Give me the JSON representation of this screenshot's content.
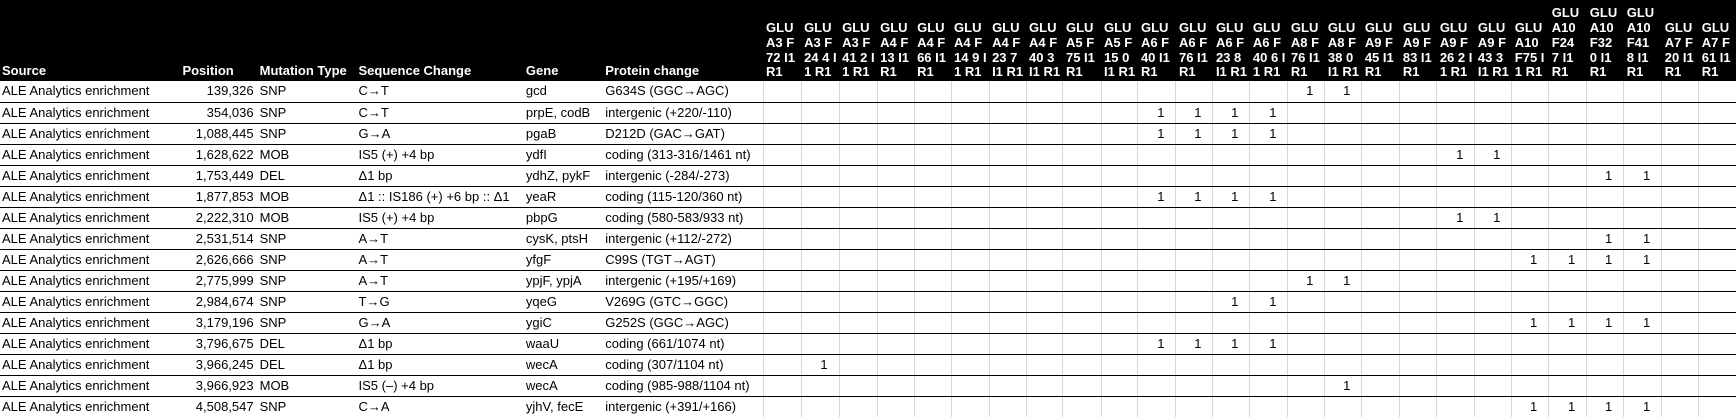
{
  "columns": [
    "Source",
    "Position",
    "Mutation Type",
    "Sequence Change",
    "Gene",
    "Protein change"
  ],
  "sample_columns": [
    "GLU A3 F72 I1 R1",
    "GLU A3 F24 4 I1 R1",
    "GLU A3 F41 2 I1 R1",
    "GLU A4 F13 I1 R1",
    "GLU A4 F66 I1 R1",
    "GLU A4 F14 9 I1 R1",
    "GLU A4 F23 7 I1 R1",
    "GLU A4 F40 3 I1 R1",
    "GLU A5 F75 I1 R1",
    "GLU A5 F15 0 I1 R1",
    "GLU A6 F40 I1 R1",
    "GLU A6 F76 I1 R1",
    "GLU A6 F23 8 I1 R1",
    "GLU A6 F40 6 I1 R1",
    "GLU A8 F76 I1 R1",
    "GLU A8 F38 0 I1 R1",
    "GLU A9 F45 I1 R1",
    "GLU A9 F83 I1 R1",
    "GLU A9 F26 2 I1 R1",
    "GLU A9 F43 3 I1 R1",
    "GLU A10 F75 I1 R1",
    "GLU A10 F24 7 I1 R1",
    "GLU A10 F32 0 I1 R1",
    "GLU A10 F41 8 I1 R1",
    "GLU A7 F20 I1 R1",
    "GLU A7 F61 I1 R1"
  ],
  "rows": [
    {
      "source": "ALE Analytics enrichment",
      "position": "139,326",
      "type": "SNP",
      "seq": "C→T",
      "gene": "gcd",
      "protein": "G634S (GGC→AGC)",
      "cells": [
        "",
        "",
        "",
        "",
        "",
        "",
        "",
        "",
        "",
        "",
        "",
        "",
        "",
        "",
        "1",
        "1",
        "",
        "",
        "",
        "",
        "",
        "",
        "",
        "",
        "",
        ""
      ]
    },
    {
      "source": "ALE Analytics enrichment",
      "position": "354,036",
      "type": "SNP",
      "seq": "C→T",
      "gene": "prpE,  codB",
      "protein": "intergenic (+220/-110)",
      "cells": [
        "",
        "",
        "",
        "",
        "",
        "",
        "",
        "",
        "",
        "",
        "1",
        "1",
        "1",
        "1",
        "",
        "",
        "",
        "",
        "",
        "",
        "",
        "",
        "",
        "",
        "",
        ""
      ]
    },
    {
      "source": "ALE Analytics enrichment",
      "position": "1,088,445",
      "type": "SNP",
      "seq": "G→A",
      "gene": "pgaB",
      "protein": "D212D (GAC→GAT)",
      "cells": [
        "",
        "",
        "",
        "",
        "",
        "",
        "",
        "",
        "",
        "",
        "1",
        "1",
        "1",
        "1",
        "",
        "",
        "",
        "",
        "",
        "",
        "",
        "",
        "",
        "",
        "",
        ""
      ]
    },
    {
      "source": "ALE Analytics enrichment",
      "position": "1,628,622",
      "type": "MOB",
      "seq": "IS5 (+) +4 bp",
      "gene": "ydfI",
      "protein": "coding (313-316/1461 nt)",
      "cells": [
        "",
        "",
        "",
        "",
        "",
        "",
        "",
        "",
        "",
        "",
        "",
        "",
        "",
        "",
        "",
        "",
        "",
        "",
        "1",
        "1",
        "",
        "",
        "",
        "",
        "",
        ""
      ]
    },
    {
      "source": "ALE Analytics enrichment",
      "position": "1,753,449",
      "type": "DEL",
      "seq": "Δ1 bp",
      "gene": "ydhZ,  pykF",
      "protein": "intergenic (-284/-273)",
      "cells": [
        "",
        "",
        "",
        "",
        "",
        "",
        "",
        "",
        "",
        "",
        "",
        "",
        "",
        "",
        "",
        "",
        "",
        "",
        "",
        "",
        "",
        "",
        "1",
        "1",
        "",
        ""
      ]
    },
    {
      "source": "ALE Analytics enrichment",
      "position": "1,877,853",
      "type": "MOB",
      "seq": "Δ1 :: IS186 (+) +6 bp :: Δ1",
      "gene": "yeaR",
      "protein": "coding (115-120/360 nt)",
      "cells": [
        "",
        "",
        "",
        "",
        "",
        "",
        "",
        "",
        "",
        "",
        "1",
        "1",
        "1",
        "1",
        "",
        "",
        "",
        "",
        "",
        "",
        "",
        "",
        "",
        "",
        "",
        ""
      ]
    },
    {
      "source": "ALE Analytics enrichment",
      "position": "2,222,310",
      "type": "MOB",
      "seq": "IS5 (+) +4 bp",
      "gene": "pbpG",
      "protein": "coding (580-583/933 nt)",
      "cells": [
        "",
        "",
        "",
        "",
        "",
        "",
        "",
        "",
        "",
        "",
        "",
        "",
        "",
        "",
        "",
        "",
        "",
        "",
        "1",
        "1",
        "",
        "",
        "",
        "",
        "",
        ""
      ]
    },
    {
      "source": "ALE Analytics enrichment",
      "position": "2,531,514",
      "type": "SNP",
      "seq": "A→T",
      "gene": "cysK,  ptsH",
      "protein": "intergenic (+112/-272)",
      "cells": [
        "",
        "",
        "",
        "",
        "",
        "",
        "",
        "",
        "",
        "",
        "",
        "",
        "",
        "",
        "",
        "",
        "",
        "",
        "",
        "",
        "",
        "",
        "1",
        "1",
        "",
        ""
      ]
    },
    {
      "source": "ALE Analytics enrichment",
      "position": "2,626,666",
      "type": "SNP",
      "seq": "A→T",
      "gene": "yfgF",
      "protein": "C99S (TGT→AGT)",
      "cells": [
        "",
        "",
        "",
        "",
        "",
        "",
        "",
        "",
        "",
        "",
        "",
        "",
        "",
        "",
        "",
        "",
        "",
        "",
        "",
        "",
        "1",
        "1",
        "1",
        "1",
        "",
        ""
      ]
    },
    {
      "source": "ALE Analytics enrichment",
      "position": "2,775,999",
      "type": "SNP",
      "seq": "A→T",
      "gene": "ypjF,  ypjA",
      "protein": "intergenic (+195/+169)",
      "cells": [
        "",
        "",
        "",
        "",
        "",
        "",
        "",
        "",
        "",
        "",
        "",
        "",
        "",
        "",
        "1",
        "1",
        "",
        "",
        "",
        "",
        "",
        "",
        "",
        "",
        "",
        ""
      ]
    },
    {
      "source": "ALE Analytics enrichment",
      "position": "2,984,674",
      "type": "SNP",
      "seq": "T→G",
      "gene": "yqeG",
      "protein": "V269G (GTC→GGC)",
      "cells": [
        "",
        "",
        "",
        "",
        "",
        "",
        "",
        "",
        "",
        "",
        "",
        "",
        "1",
        "1",
        "",
        "",
        "",
        "",
        "",
        "",
        "",
        "",
        "",
        "",
        "",
        ""
      ]
    },
    {
      "source": "ALE Analytics enrichment",
      "position": "3,179,196",
      "type": "SNP",
      "seq": "G→A",
      "gene": "ygiC",
      "protein": "G252S (GGC→AGC)",
      "cells": [
        "",
        "",
        "",
        "",
        "",
        "",
        "",
        "",
        "",
        "",
        "",
        "",
        "",
        "",
        "",
        "",
        "",
        "",
        "",
        "",
        "1",
        "1",
        "1",
        "1",
        "",
        ""
      ]
    },
    {
      "source": "ALE Analytics enrichment",
      "position": "3,796,675",
      "type": "DEL",
      "seq": "Δ1 bp",
      "gene": "waaU",
      "protein": "coding (661/1074 nt)",
      "cells": [
        "",
        "",
        "",
        "",
        "",
        "",
        "",
        "",
        "",
        "",
        "1",
        "1",
        "1",
        "1",
        "",
        "",
        "",
        "",
        "",
        "",
        "",
        "",
        "",
        "",
        "",
        ""
      ]
    },
    {
      "source": "ALE Analytics enrichment",
      "position": "3,966,245",
      "type": "DEL",
      "seq": "Δ1 bp",
      "gene": "wecA",
      "protein": "coding (307/1104 nt)",
      "cells": [
        "",
        "1",
        "",
        "",
        "",
        "",
        "",
        "",
        "",
        "",
        "",
        "",
        "",
        "",
        "",
        "",
        "",
        "",
        "",
        "",
        "",
        "",
        "",
        "",
        "",
        ""
      ]
    },
    {
      "source": "ALE Analytics enrichment",
      "position": "3,966,923",
      "type": "MOB",
      "seq": "IS5 (–) +4 bp",
      "gene": "wecA",
      "protein": "coding (985-988/1104 nt)",
      "cells": [
        "",
        "",
        "",
        "",
        "",
        "",
        "",
        "",
        "",
        "",
        "",
        "",
        "",
        "",
        "",
        "1",
        "",
        "",
        "",
        "",
        "",
        "",
        "",
        "",
        "",
        ""
      ]
    },
    {
      "source": "ALE Analytics enrichment",
      "position": "4,508,547",
      "type": "SNP",
      "seq": "C→A",
      "gene": "yjhV,  fecE",
      "protein": "intergenic (+391/+166)",
      "cells": [
        "",
        "",
        "",
        "",
        "",
        "",
        "",
        "",
        "",
        "",
        "",
        "",
        "",
        "",
        "",
        "",
        "",
        "",
        "",
        "",
        "1",
        "1",
        "1",
        "1",
        "",
        ""
      ]
    }
  ]
}
